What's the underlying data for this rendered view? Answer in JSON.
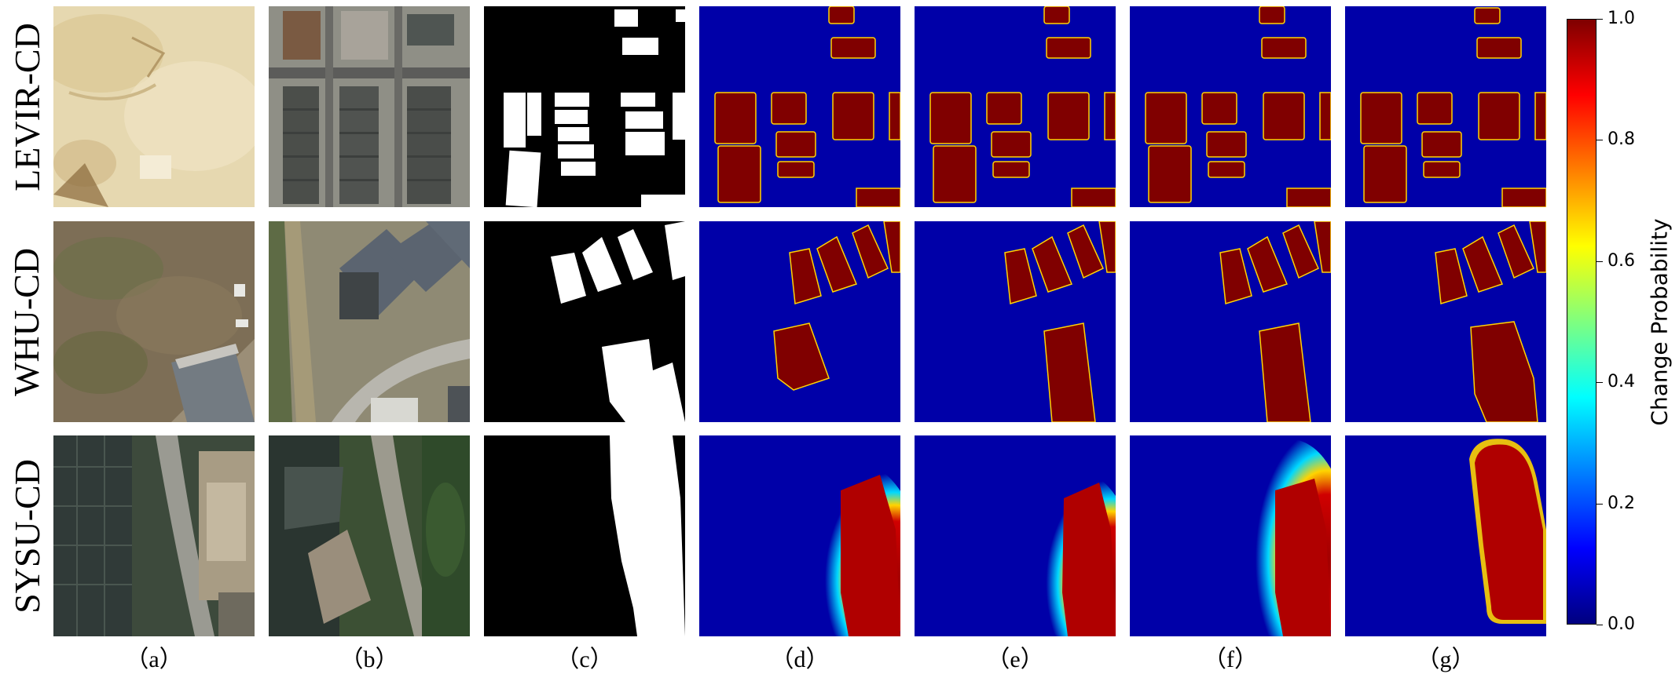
{
  "rows": [
    {
      "label": "LEVIR-CD"
    },
    {
      "label": "WHU-CD"
    },
    {
      "label": "SYSU-CD"
    }
  ],
  "columns": [
    {
      "label": "（a）"
    },
    {
      "label": "（b）"
    },
    {
      "label": "（c）"
    },
    {
      "label": "（d）"
    },
    {
      "label": "（e）"
    },
    {
      "label": "（f）"
    },
    {
      "label": "（g）"
    }
  ],
  "colorbar": {
    "label": "Change  Probability",
    "ticks": [
      "1.0",
      "0.8",
      "0.6",
      "0.4",
      "0.2",
      "0.0"
    ],
    "colormap": "jet",
    "colors": [
      "#00007f",
      "#0000ff",
      "#007fff",
      "#00ffff",
      "#7fff7f",
      "#ffff00",
      "#ff7f00",
      "#ff0000",
      "#7f0000"
    ]
  }
}
